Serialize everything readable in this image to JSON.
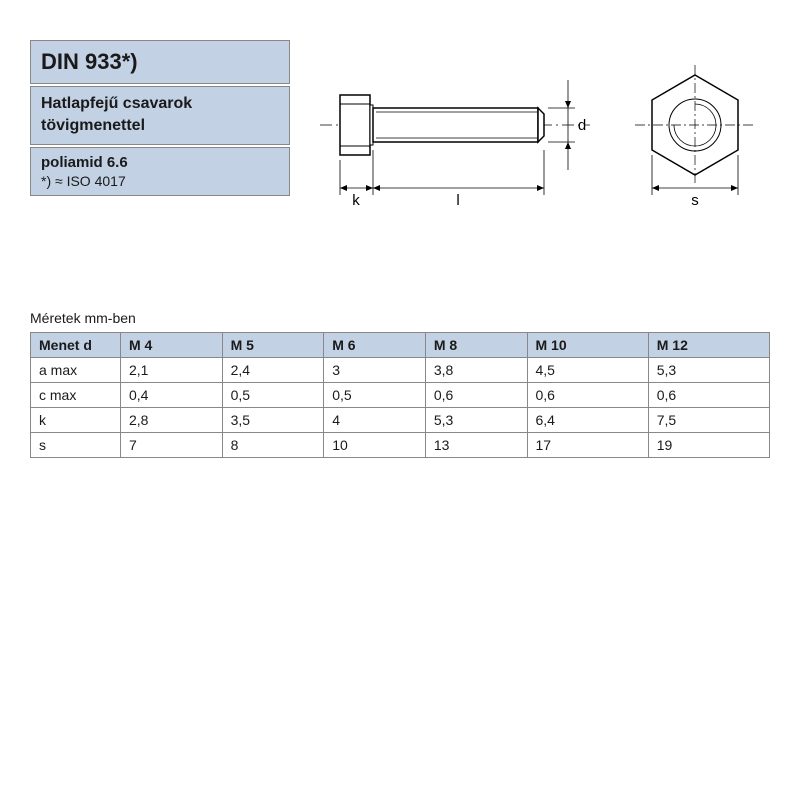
{
  "header": {
    "title": "DIN 933*)",
    "subtitle_line1": "Hatlapfejű csavarok",
    "subtitle_line2": "tövigmenettel",
    "material": "poliamid 6.6",
    "note": "*) ≈ ISO 4017"
  },
  "diagram": {
    "side_view": {
      "dim_k": "k",
      "dim_l": "l",
      "dim_d": "d",
      "stroke": "#000000",
      "fill": "#ffffff"
    },
    "end_view": {
      "dim_s": "s",
      "stroke": "#000000",
      "fill": "#ffffff"
    }
  },
  "table": {
    "caption": "Méretek mm-ben",
    "header_label": "Menet d",
    "columns": [
      "M 4",
      "M 5",
      "M 6",
      "M 8",
      "M 10",
      "M 12"
    ],
    "rows": [
      {
        "label": "a max",
        "values": [
          "2,1",
          "2,4",
          "3",
          "3,8",
          "4,5",
          "5,3"
        ]
      },
      {
        "label": "c max",
        "values": [
          "0,4",
          "0,5",
          "0,5",
          "0,6",
          "0,6",
          "0,6"
        ]
      },
      {
        "label": "k",
        "values": [
          "2,8",
          "3,5",
          "4",
          "5,3",
          "6,4",
          "7,5"
        ]
      },
      {
        "label": "s",
        "values": [
          "7",
          "8",
          "10",
          "13",
          "17",
          "19"
        ]
      }
    ],
    "col_count": 6,
    "header_bg": "#c3d1e4",
    "border_color": "#888888",
    "font_size": 14
  },
  "colors": {
    "panel_bg": "#c3d1e4",
    "panel_border": "#888888",
    "text": "#1a1a1a",
    "page_bg": "#ffffff"
  }
}
